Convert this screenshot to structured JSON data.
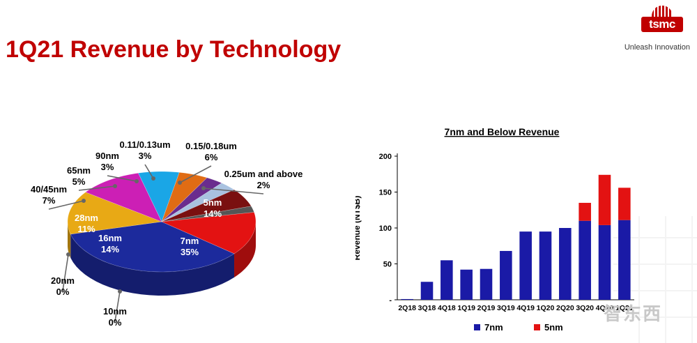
{
  "page": {
    "title": "1Q21 Revenue by Technology",
    "logo_text": "tsmc",
    "logo_tagline": "Unleash Innovation",
    "watermark": "智东西"
  },
  "colors": {
    "title": "#c00000",
    "n7": "#1a1aa6",
    "n5": "#e31212"
  },
  "chart_data": [
    {
      "type": "pie",
      "title": "",
      "slices": [
        {
          "name": "7nm",
          "value": 35,
          "label_pct": "35%",
          "color": "#1c2a9c"
        },
        {
          "name": "16nm",
          "value": 14,
          "label_pct": "14%",
          "color": "#e8a915"
        },
        {
          "name": "20nm",
          "value": 0,
          "label_pct": "0%",
          "color": "#9e9e9e"
        },
        {
          "name": "10nm",
          "value": 0,
          "label_pct": "0%",
          "color": "#777777"
        },
        {
          "name": "28nm",
          "value": 11,
          "label_pct": "11%",
          "color": "#cc1fb5"
        },
        {
          "name": "40/45nm",
          "value": 7,
          "label_pct": "7%",
          "color": "#1aa6e6"
        },
        {
          "name": "65nm",
          "value": 5,
          "label_pct": "5%",
          "color": "#e06c14"
        },
        {
          "name": "90nm",
          "value": 3,
          "label_pct": "3%",
          "color": "#6a2c8e"
        },
        {
          "name": "0.11/0.13um",
          "value": 3,
          "label_pct": "3%",
          "color": "#a9c2e0"
        },
        {
          "name": "0.15/0.18um",
          "value": 6,
          "label_pct": "6%",
          "color": "#7a1010"
        },
        {
          "name": "0.25um and above",
          "value": 2,
          "label_pct": "2%",
          "color": "#555555"
        },
        {
          "name": "5nm",
          "value": 14,
          "label_pct": "14%",
          "color": "#e31212"
        }
      ]
    },
    {
      "type": "bar",
      "stacked": true,
      "title": "7nm and Below Revenue",
      "xlabel": "",
      "ylabel": "Revenue (NT$B)",
      "ylim": [
        0,
        200
      ],
      "yticks": [
        0,
        50,
        100,
        150,
        200
      ],
      "ytick_labels": [
        "-",
        "50",
        "100",
        "150",
        "200"
      ],
      "categories": [
        "2Q18",
        "3Q18",
        "4Q18",
        "1Q19",
        "2Q19",
        "3Q19",
        "4Q19",
        "1Q20",
        "2Q20",
        "3Q20",
        "4Q20",
        "1Q21"
      ],
      "series": [
        {
          "name": "7nm",
          "color": "#1a1aa6",
          "values": [
            1,
            25,
            55,
            42,
            43,
            68,
            95,
            95,
            100,
            110,
            104,
            111
          ]
        },
        {
          "name": "5nm",
          "color": "#e31212",
          "values": [
            0,
            0,
            0,
            0,
            0,
            0,
            0,
            0,
            0,
            25,
            70,
            45
          ]
        }
      ],
      "legend": "bottom"
    }
  ]
}
